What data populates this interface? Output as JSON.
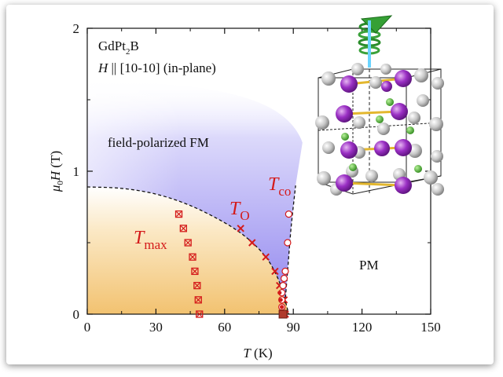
{
  "chart_data": {
    "type": "scatter",
    "title": "",
    "compound": {
      "base": "GdPt",
      "sub": "2",
      "end": "B"
    },
    "condition": "H || [10-10] (in-plane)",
    "xlabel": {
      "italic": "T",
      "unit": " (K)"
    },
    "ylabel": {
      "italic": "μ",
      "sub": "0",
      "italic2": "H",
      "unit": " (T)"
    },
    "xlim": [
      0,
      150
    ],
    "ylim": [
      0,
      2
    ],
    "xticks": [
      "0",
      "30",
      "60",
      "90",
      "120",
      "150"
    ],
    "yticks": [
      "0",
      "1",
      "2"
    ],
    "phase_labels": {
      "fpfm": "field-polarized FM",
      "pm": "PM"
    },
    "series": [
      {
        "name": "T_max",
        "label_main": "T",
        "label_sub": "max",
        "marker": "boxed-x",
        "color": "#d41a1a",
        "points": [
          [
            40,
            0.7
          ],
          [
            42,
            0.6
          ],
          [
            44,
            0.5
          ],
          [
            46,
            0.4
          ],
          [
            47,
            0.3
          ],
          [
            48,
            0.2
          ],
          [
            48.5,
            0.1
          ],
          [
            49,
            0.0
          ]
        ]
      },
      {
        "name": "T_O",
        "label_main": "T",
        "label_sub": "O",
        "marker": "x",
        "color": "#d41a1a",
        "points": [
          [
            67,
            0.6
          ],
          [
            72,
            0.5
          ],
          [
            78,
            0.4
          ],
          [
            82,
            0.3
          ],
          [
            84,
            0.2
          ],
          [
            86,
            0.1
          ],
          [
            86.5,
            0.0
          ]
        ]
      },
      {
        "name": "T_co",
        "label_main": "T",
        "label_sub": "co",
        "marker": "open-circle",
        "color": "#d41a1a",
        "points": [
          [
            88,
            0.7
          ],
          [
            87.5,
            0.5
          ],
          [
            86.5,
            0.3
          ],
          [
            86,
            0.25
          ],
          [
            85.5,
            0.2
          ],
          [
            85,
            0.15
          ],
          [
            85,
            0.1
          ],
          [
            85,
            0.05
          ]
        ]
      },
      {
        "name": "transition",
        "marker": "filled-circle",
        "color": "#d41a1a",
        "points": [
          [
            84,
            0.15
          ],
          [
            84.5,
            0.1
          ],
          [
            85,
            0.05
          ],
          [
            85,
            0.02
          ]
        ]
      },
      {
        "name": "zero-field",
        "marker": "filled-square",
        "color": "#b0392b",
        "points": [
          [
            85.5,
            0.0
          ]
        ]
      }
    ],
    "boundary_curve": [
      [
        0,
        0.89
      ],
      [
        15,
        0.88
      ],
      [
        30,
        0.84
      ],
      [
        45,
        0.76
      ],
      [
        60,
        0.64
      ],
      [
        70,
        0.53
      ],
      [
        78,
        0.4
      ],
      [
        83,
        0.26
      ],
      [
        86,
        0.12
      ],
      [
        88,
        0.0
      ]
    ],
    "crossover_curve": [
      [
        86,
        0.0
      ],
      [
        87.5,
        0.3
      ],
      [
        89,
        0.6
      ],
      [
        91,
        0.9
      ]
    ],
    "colors": {
      "fm_region": "#f6cf8a",
      "fpfm_region": "#a79ef0",
      "curve": "#111111"
    }
  },
  "inset": {
    "description_icon": "crystal-structure-icon"
  }
}
